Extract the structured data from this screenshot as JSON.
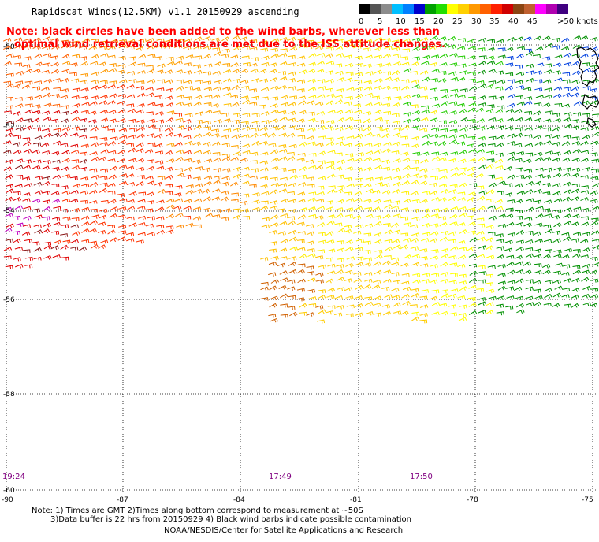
{
  "title": "Rapidscat Winds(12.5KM) v1.1 20150929 ascending",
  "note": {
    "line1": "Note: black circles have been added to the wind barbs, wherever less than",
    "line2": "optimal wind retrieval conditions are met due to the ISS attitude changes."
  },
  "legend": {
    "colors": [
      "#000000",
      "#555555",
      "#8c8c8c",
      "#00bfff",
      "#0080ff",
      "#0000cd",
      "#00a000",
      "#22dd00",
      "#ffff00",
      "#ffd000",
      "#ff9900",
      "#ff6000",
      "#ff2000",
      "#d00000",
      "#8b4513",
      "#c06030",
      "#ff00ff",
      "#b000b0",
      "#400080"
    ],
    "labels": [
      "0",
      "5",
      "10",
      "15",
      "20",
      "25",
      "30",
      "35",
      "40",
      "45",
      ">50 knots"
    ]
  },
  "axes": {
    "lat_labels": [
      "-50",
      "-52",
      "-54",
      "-56",
      "-58",
      "-60"
    ],
    "lon_labels": [
      "-90",
      "-87",
      "-84",
      "-81",
      "-78",
      "-75"
    ]
  },
  "times": [
    "19:24",
    "17:49",
    "17:50"
  ],
  "footer": {
    "line1": "Note: 1) Times are GMT 2)Times along bottom correspond to measurement at ~50S",
    "line2": "3)Data buffer is 22 hrs from 20150929 4) Black wind barbs indicate possible contamination",
    "line3": "NOAA/NESDIS/Center for Satellite Applications and Research"
  }
}
